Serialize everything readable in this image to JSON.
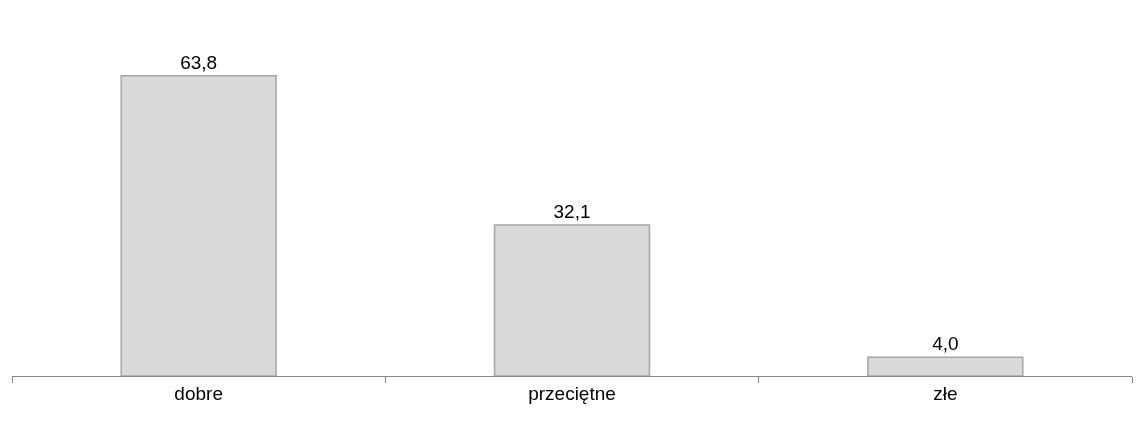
{
  "chart_data": {
    "type": "bar",
    "categories": [
      "dobre",
      "przeciętne",
      "złe"
    ],
    "values": [
      63.8,
      32.1,
      4.0
    ],
    "value_labels": [
      "63,8",
      "32,1",
      "4,0"
    ],
    "color": "#d9d9d9"
  }
}
